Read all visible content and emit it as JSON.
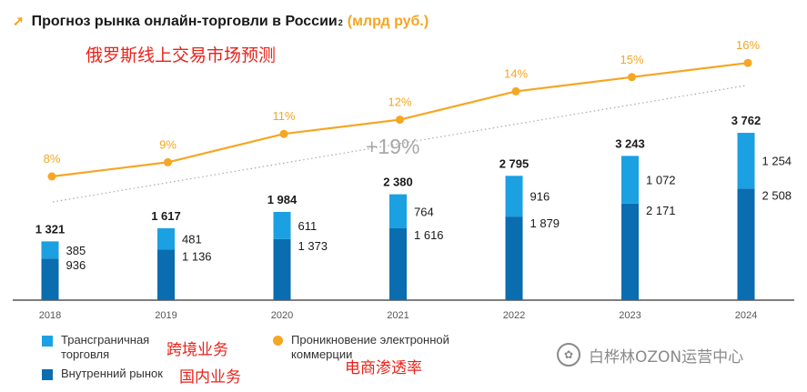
{
  "title": {
    "main": "Прогноз рынка онлайн-торговли в России",
    "superscript": "2",
    "unit": "(млрд руб.)",
    "icon": "arrow-up-right-icon"
  },
  "annotations": {
    "chart_cn": "俄罗斯线上交易市场预测",
    "growth": "+19%",
    "cross_border_cn": "跨境业务",
    "domestic_cn": "国内业务",
    "penetration_cn": "电商渗透率"
  },
  "legend": {
    "cross_border": "Трансграничная торговля",
    "domestic": "Внутренний рынок",
    "penetration": "Проникновение электронной коммерции"
  },
  "watermark": "白桦林OZON运营中心",
  "colors": {
    "cross_border": "#1ba0e2",
    "domestic": "#0a6db0",
    "penetration": "#f5a623",
    "growth_trend": "#aaaaaa"
  },
  "chart_data": {
    "type": "bar",
    "categories": [
      "2018",
      "2019",
      "2020",
      "2021",
      "2022",
      "2023",
      "2024"
    ],
    "series": [
      {
        "name": "Внутренний рынок",
        "values": [
          936,
          1136,
          1373,
          1616,
          1879,
          2171,
          2508
        ],
        "labels": [
          "936",
          "1 136",
          "1 373",
          "1 616",
          "1 879",
          "2 171",
          "2 508"
        ]
      },
      {
        "name": "Трансграничная торговля",
        "values": [
          385,
          481,
          611,
          764,
          916,
          1072,
          1254
        ],
        "labels": [
          "385",
          "481",
          "611",
          "764",
          "916",
          "1 072",
          "1 254"
        ]
      }
    ],
    "totals": [
      1321,
      1617,
      1984,
      2380,
      2795,
      3243,
      3762
    ],
    "total_labels": [
      "1 321",
      "1 617",
      "1 984",
      "2 380",
      "2 795",
      "3 243",
      "3 762"
    ],
    "line": {
      "name": "Проникновение электронной коммерции",
      "values": [
        8,
        9,
        11,
        12,
        14,
        15,
        16
      ],
      "labels": [
        "8%",
        "9%",
        "11%",
        "12%",
        "14%",
        "15%",
        "16%"
      ]
    },
    "trend_label": "+19%",
    "stacked": true
  }
}
